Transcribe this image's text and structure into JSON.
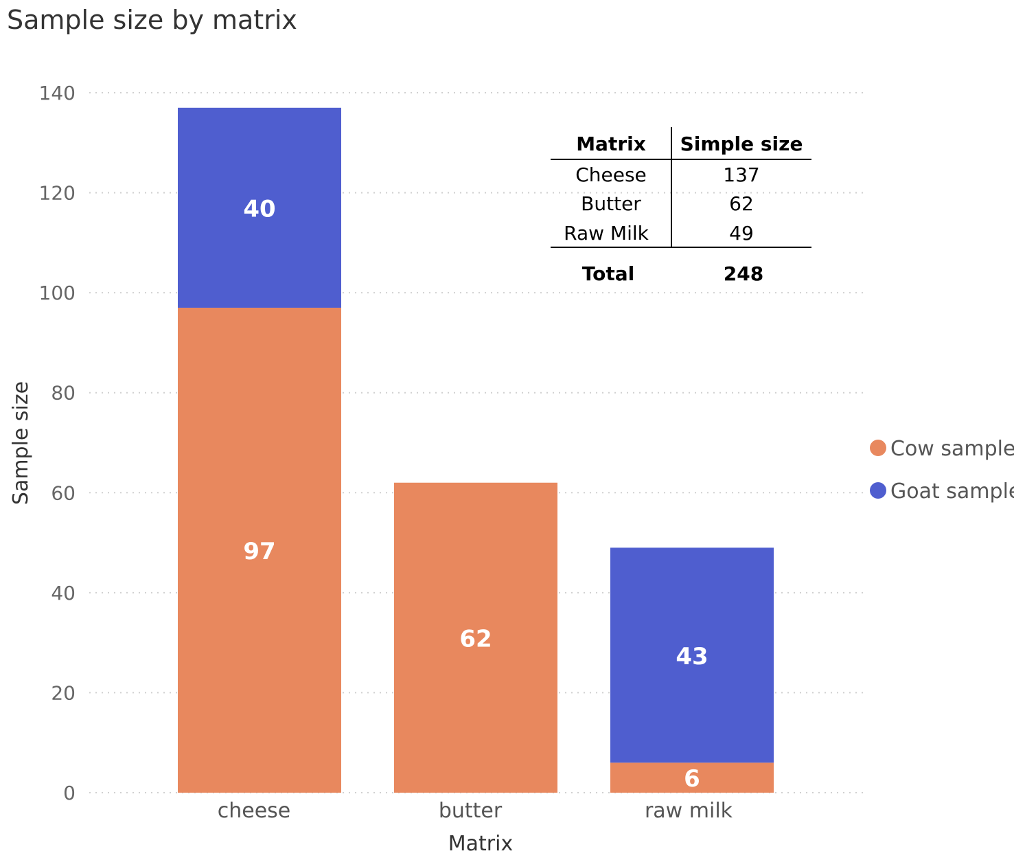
{
  "chart_data": {
    "type": "bar",
    "stacked": true,
    "title": "Sample size by matrix",
    "xlabel": "Matrix",
    "ylabel": "Sample size",
    "ylim": [
      0,
      140
    ],
    "yticks": [
      0,
      20,
      40,
      60,
      80,
      100,
      120,
      140
    ],
    "categories": [
      "cheese",
      "butter",
      "raw milk"
    ],
    "series": [
      {
        "name": "Cow sample",
        "values": [
          97,
          62,
          6
        ],
        "color": "#E8885E"
      },
      {
        "name": "Goat sample",
        "values": [
          40,
          0,
          43
        ],
        "color": "#4F5ECF"
      }
    ],
    "grid": true,
    "legend_position": "right"
  },
  "table": {
    "headers": [
      "Matrix",
      "Simple size"
    ],
    "rows": [
      [
        "Cheese",
        "137"
      ],
      [
        "Butter",
        "62"
      ],
      [
        "Raw Milk",
        "49"
      ]
    ],
    "total_label": "Total",
    "total_value": "248"
  }
}
